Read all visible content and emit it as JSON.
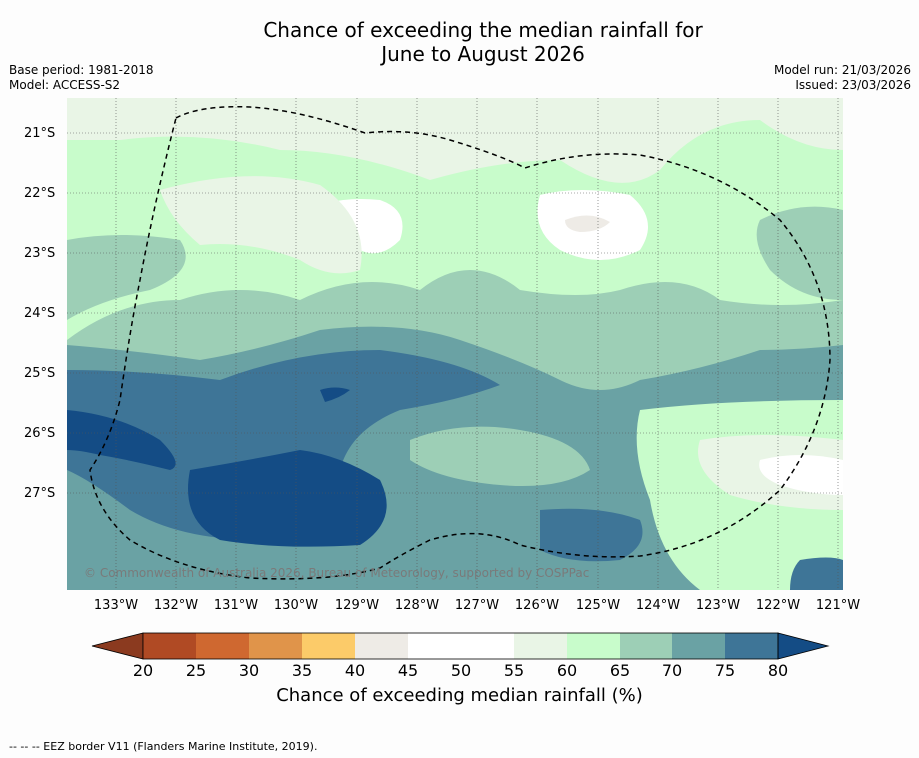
{
  "title": {
    "line1": "Chance of exceeding the median rainfall for",
    "line2": "June to August 2026"
  },
  "meta": {
    "base_period": "Base period: 1981-2018",
    "model": "Model: ACCESS-S2",
    "model_run": "Model run: 21/03/2026",
    "issued": "Issued: 23/03/2026"
  },
  "map": {
    "lat_labels": [
      "21°S",
      "22°S",
      "23°S",
      "24°S",
      "25°S",
      "26°S",
      "27°S"
    ],
    "lon_labels": [
      "133°W",
      "132°W",
      "131°W",
      "130°W",
      "129°W",
      "128°W",
      "127°W",
      "126°W",
      "125°W",
      "124°W",
      "123°W",
      "122°W",
      "121°W"
    ],
    "copyright": "© Commonwealth of Australia 2026, Bureau of Meteorology, supported by COSPPac",
    "eez_line": "dashed"
  },
  "colorbar": {
    "ticks": [
      "20",
      "25",
      "30",
      "35",
      "40",
      "45",
      "50",
      "55",
      "60",
      "65",
      "70",
      "75",
      "80"
    ],
    "colors": [
      "#8b3a1f",
      "#b04a24",
      "#cf6830",
      "#e0944a",
      "#fccb69",
      "#eeebe6",
      "#ffffff",
      "#ffffff",
      "#e9f5e6",
      "#c8fccb",
      "#9dcfb6",
      "#6aa2a4",
      "#3e7597",
      "#144c85"
    ],
    "label": "Chance of exceeding median rainfall (%)"
  },
  "footnote": "--  --  -- EEZ border V11 (Flanders Marine Institute, 2019)."
}
